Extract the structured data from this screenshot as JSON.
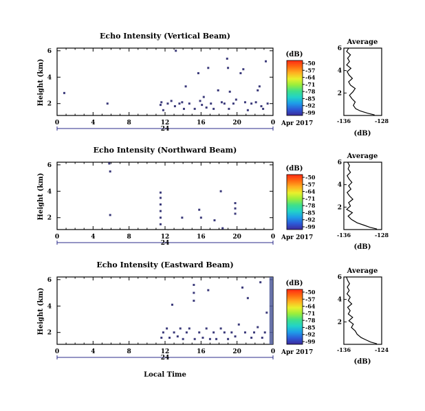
{
  "colors": {
    "echo_mark": "#3b3a7a",
    "colorbar": [
      "#3c2a9a",
      "#2c5bd8",
      "#1e9ee8",
      "#22d3c8",
      "#3fe08a",
      "#9aee3c",
      "#e9f02c",
      "#ffb020",
      "#ff6a10",
      "#ff2a14"
    ]
  },
  "x_axis": {
    "tick_labels": [
      "0",
      "4",
      "8",
      "12",
      "16",
      "20",
      "0"
    ],
    "day_label": "24",
    "month_label": "Apr 2017",
    "xlabel": "Local Time"
  },
  "colorbar_info": {
    "unit": "(dB)",
    "tick_labels": [
      "-50",
      "-57",
      "-64",
      "-71",
      "-78",
      "-85",
      "-92",
      "-99"
    ]
  },
  "chart_data": [
    {
      "type": "heatmap",
      "title": "Echo Intensity (Vertical Beam)",
      "ylabel": "Height (km)",
      "y_tick_labels": [
        "2",
        "4",
        "6"
      ],
      "x_range_hours": [
        0,
        24
      ],
      "y_range_km": [
        1.1,
        6.2
      ],
      "echo_points_hour_km": [
        [
          0.8,
          2.8
        ],
        [
          5.6,
          2.0
        ],
        [
          11.5,
          1.9
        ],
        [
          11.6,
          2.1
        ],
        [
          11.8,
          1.5
        ],
        [
          12.3,
          2.0
        ],
        [
          12.7,
          2.2
        ],
        [
          13.1,
          1.8
        ],
        [
          13.2,
          6.0
        ],
        [
          13.6,
          2.0
        ],
        [
          13.9,
          2.1
        ],
        [
          14.1,
          1.6
        ],
        [
          14.3,
          3.3
        ],
        [
          14.7,
          2.0
        ],
        [
          15.3,
          1.6
        ],
        [
          15.7,
          4.3
        ],
        [
          15.9,
          2.2
        ],
        [
          16.1,
          1.9
        ],
        [
          16.3,
          2.5
        ],
        [
          16.6,
          1.7
        ],
        [
          16.8,
          4.7
        ],
        [
          17.1,
          2.0
        ],
        [
          17.4,
          1.6
        ],
        [
          17.9,
          3.0
        ],
        [
          18.3,
          2.1
        ],
        [
          18.6,
          2.0
        ],
        [
          18.9,
          5.4
        ],
        [
          19.0,
          4.7
        ],
        [
          19.1,
          1.6
        ],
        [
          19.2,
          2.9
        ],
        [
          19.6,
          2.0
        ],
        [
          19.9,
          2.3
        ],
        [
          20.4,
          4.3
        ],
        [
          20.7,
          4.6
        ],
        [
          20.9,
          2.1
        ],
        [
          21.2,
          1.5
        ],
        [
          21.6,
          2.0
        ],
        [
          22.1,
          2.1
        ],
        [
          22.3,
          3.0
        ],
        [
          22.5,
          3.3
        ],
        [
          22.7,
          1.8
        ],
        [
          22.9,
          1.6
        ],
        [
          23.2,
          5.2
        ],
        [
          23.4,
          2.0
        ]
      ],
      "average_profile": {
        "title": "Average",
        "xlabel": "(dB)",
        "x_tick_labels": [
          "-136",
          "-128"
        ],
        "y_tick_labels": [
          "2",
          "4",
          "6"
        ],
        "x_range_db": [
          -136,
          -128
        ],
        "y_range_km": [
          0,
          6
        ],
        "dB": [
          -129.5,
          -131.0,
          -132.5,
          -133.5,
          -134.0,
          -133.6,
          -134.3,
          -134.8,
          -134.1,
          -133.6,
          -134.6,
          -135.0,
          -134.2,
          -134.9,
          -135.3,
          -134.5,
          -135.4,
          -134.8,
          -135.2,
          -134.6,
          -135.4,
          -135.0
        ],
        "height_km": [
          0.05,
          0.2,
          0.4,
          0.6,
          0.9,
          1.2,
          1.5,
          1.8,
          2.1,
          2.4,
          2.7,
          3.0,
          3.3,
          3.6,
          3.9,
          4.2,
          4.5,
          4.8,
          5.1,
          5.4,
          5.7,
          6.0
        ]
      }
    },
    {
      "type": "heatmap",
      "title": "Echo Intensity (Northward Beam)",
      "ylabel": "Height (km)",
      "y_tick_labels": [
        "2",
        "4",
        "6"
      ],
      "x_range_hours": [
        0,
        24
      ],
      "y_range_km": [
        1.1,
        6.2
      ],
      "echo_points_hour_km": [
        [
          5.8,
          6.1
        ],
        [
          5.9,
          5.5
        ],
        [
          5.9,
          2.2
        ],
        [
          11.5,
          3.9
        ],
        [
          11.5,
          3.5
        ],
        [
          11.5,
          3.0
        ],
        [
          11.5,
          2.5
        ],
        [
          11.5,
          2.0
        ],
        [
          11.5,
          1.5
        ],
        [
          13.9,
          2.0
        ],
        [
          15.8,
          2.6
        ],
        [
          16.0,
          2.0
        ],
        [
          17.5,
          1.8
        ],
        [
          18.2,
          4.0
        ],
        [
          18.4,
          1.2
        ],
        [
          19.8,
          3.1
        ],
        [
          19.8,
          2.7
        ],
        [
          19.8,
          2.3
        ]
      ],
      "average_profile": {
        "title": "Average",
        "xlabel": "(dB)",
        "x_tick_labels": [
          "-136",
          "-128"
        ],
        "y_tick_labels": [
          "2",
          "4",
          "6"
        ],
        "x_range_db": [
          -136,
          -128
        ],
        "y_range_km": [
          0,
          6
        ],
        "dB": [
          -129.0,
          -130.5,
          -131.8,
          -133.2,
          -134.4,
          -135.1,
          -134.2,
          -135.4,
          -134.6,
          -135.0,
          -134.1,
          -134.8,
          -135.3,
          -134.5,
          -135.0,
          -134.3,
          -134.9,
          -135.3,
          -134.6,
          -135.1,
          -134.8,
          -135.2
        ],
        "height_km": [
          0.05,
          0.2,
          0.4,
          0.6,
          0.9,
          1.2,
          1.5,
          1.8,
          2.1,
          2.4,
          2.7,
          3.0,
          3.3,
          3.6,
          3.9,
          4.2,
          4.5,
          4.8,
          5.1,
          5.4,
          5.7,
          6.0
        ]
      }
    },
    {
      "type": "heatmap",
      "title": "Echo Intensity (Eastward Beam)",
      "ylabel": "Height (km)",
      "y_tick_labels": [
        "2",
        "4",
        "6"
      ],
      "x_range_hours": [
        0,
        24
      ],
      "y_range_km": [
        1.1,
        6.2
      ],
      "echo_points_hour_km": [
        [
          11.6,
          1.6
        ],
        [
          11.8,
          2.0
        ],
        [
          12.2,
          2.3
        ],
        [
          12.5,
          1.6
        ],
        [
          12.8,
          4.1
        ],
        [
          13.0,
          2.0
        ],
        [
          13.4,
          1.7
        ],
        [
          13.7,
          2.3
        ],
        [
          14.0,
          1.5
        ],
        [
          14.4,
          2.0
        ],
        [
          14.7,
          2.3
        ],
        [
          15.2,
          5.6
        ],
        [
          15.2,
          5.0
        ],
        [
          15.2,
          4.4
        ],
        [
          15.3,
          1.5
        ],
        [
          15.8,
          2.0
        ],
        [
          16.2,
          1.6
        ],
        [
          16.6,
          2.3
        ],
        [
          16.8,
          5.2
        ],
        [
          17.0,
          1.5
        ],
        [
          17.4,
          2.0
        ],
        [
          17.7,
          1.5
        ],
        [
          18.2,
          2.3
        ],
        [
          18.6,
          2.0
        ],
        [
          19.0,
          1.5
        ],
        [
          19.4,
          2.0
        ],
        [
          19.8,
          1.7
        ],
        [
          20.2,
          2.6
        ],
        [
          20.6,
          5.4
        ],
        [
          20.9,
          2.0
        ],
        [
          21.2,
          4.6
        ],
        [
          21.6,
          1.6
        ],
        [
          21.9,
          2.0
        ],
        [
          22.3,
          2.4
        ],
        [
          22.6,
          5.8
        ],
        [
          22.8,
          1.6
        ],
        [
          23.1,
          2.0
        ],
        [
          23.3,
          3.5
        ]
      ],
      "dense_band_hours": [
        23.6,
        24
      ],
      "average_profile": {
        "title": "Average",
        "xlabel": "(dB)",
        "x_tick_labels": [
          "-136",
          "-124"
        ],
        "y_tick_labels": [
          "2",
          "4",
          "6"
        ],
        "x_range_db": [
          -136,
          -124
        ],
        "y_range_km": [
          0,
          6
        ],
        "dB": [
          -125.5,
          -127.5,
          -129.0,
          -130.5,
          -131.8,
          -132.4,
          -133.6,
          -133.0,
          -134.4,
          -133.2,
          -134.6,
          -134.0,
          -134.8,
          -133.5,
          -134.6,
          -134.0,
          -135.0,
          -134.3,
          -134.9,
          -134.2,
          -134.8,
          -135.2
        ],
        "height_km": [
          0.05,
          0.2,
          0.4,
          0.6,
          0.9,
          1.2,
          1.5,
          1.8,
          2.1,
          2.4,
          2.7,
          3.0,
          3.3,
          3.6,
          3.9,
          4.2,
          4.5,
          4.8,
          5.1,
          5.4,
          5.7,
          6.0
        ]
      }
    }
  ]
}
